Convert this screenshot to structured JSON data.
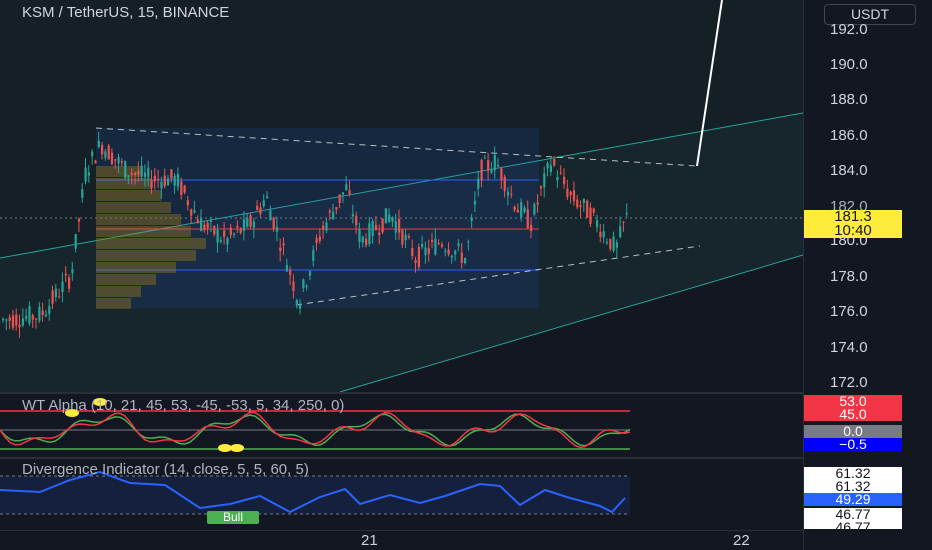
{
  "symbol_title": "KSM / TetherUS, 15, BINANCE",
  "currency": "USDT",
  "price_ticks": [
    "192.0",
    "190.0",
    "188.0",
    "186.0",
    "184.0",
    "182.0",
    "180.0",
    "178.0",
    "176.0",
    "174.0",
    "172.0"
  ],
  "current_price": {
    "value": "181.3",
    "countdown": "10:40",
    "color": "#ffeb3b"
  },
  "wt_indicator": {
    "title": "WT Alpha (10, 21, 45, 53, -45, -53, 5, 34, 250, 0)",
    "badges": [
      {
        "text": "53.0",
        "bg": "#f23645",
        "fg": "#ffffff"
      },
      {
        "text": "45.0",
        "bg": "#f23645",
        "fg": "#ffffff"
      },
      {
        "text": "0.0",
        "bg": "#787b86",
        "fg": "#ffffff"
      },
      {
        "text": "−0.5",
        "bg": "#0000ff",
        "fg": "#ffffff"
      }
    ]
  },
  "div_indicator": {
    "title": "Divergence Indicator (14, close, 5, 5, 60, 5)",
    "badges": [
      {
        "text": "61.32",
        "bg": "#ffffff",
        "fg": "#131722"
      },
      {
        "text": "61.32",
        "bg": "#ffffff",
        "fg": "#131722"
      },
      {
        "text": "49.29",
        "bg": "#2962ff",
        "fg": "#ffffff"
      },
      {
        "text": "46.77",
        "bg": "#ffffff",
        "fg": "#131722"
      },
      {
        "text": "46.77",
        "bg": "#ffffff",
        "fg": "#131722"
      }
    ],
    "bull_label": "Bull"
  },
  "time_labels": [
    "21",
    "22"
  ],
  "colors": {
    "up": "#26a69a",
    "down": "#ef5350",
    "rsi": "#2962ff",
    "channel": "#26a69a"
  }
}
